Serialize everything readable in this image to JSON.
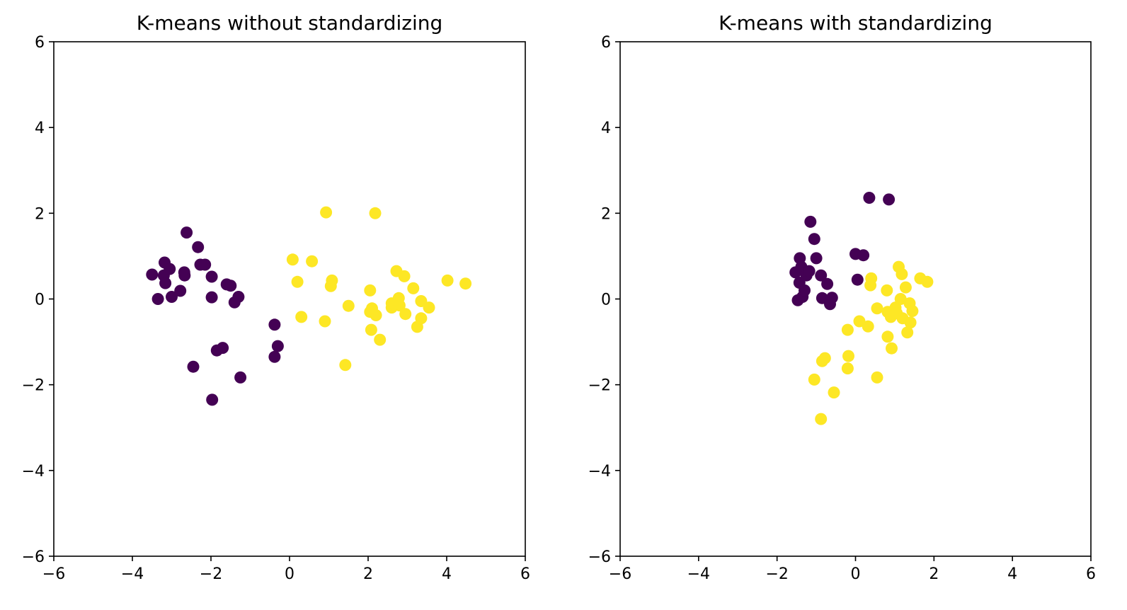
{
  "chart_data": [
    {
      "type": "scatter",
      "title": "K-means without standardizing",
      "xlabel": "",
      "ylabel": "",
      "xlim": [
        -6,
        6
      ],
      "ylim": [
        -6,
        6
      ],
      "xticks": [
        -6,
        -4,
        -2,
        0,
        2,
        4,
        6
      ],
      "yticks": [
        -6,
        -4,
        -2,
        0,
        2,
        4,
        6
      ],
      "grid": false,
      "series": [
        {
          "color": "#440154",
          "points": [
            [
              -3.5,
              0.57
            ],
            [
              -3.35,
              0.0
            ],
            [
              -3.2,
              0.55
            ],
            [
              -3.18,
              0.85
            ],
            [
              -3.16,
              0.37
            ],
            [
              -3.05,
              0.7
            ],
            [
              -3.0,
              0.05
            ],
            [
              -2.78,
              0.19
            ],
            [
              -2.68,
              0.62
            ],
            [
              -2.67,
              0.55
            ],
            [
              -2.62,
              1.55
            ],
            [
              -2.33,
              1.21
            ],
            [
              -2.27,
              0.8
            ],
            [
              -2.15,
              0.8
            ],
            [
              -1.98,
              0.52
            ],
            [
              -1.98,
              0.04
            ],
            [
              -1.6,
              0.34
            ],
            [
              -1.5,
              0.31
            ],
            [
              -1.4,
              -0.08
            ],
            [
              -1.3,
              0.05
            ],
            [
              -2.45,
              -1.58
            ],
            [
              -1.85,
              -1.2
            ],
            [
              -1.7,
              -1.14
            ],
            [
              -1.25,
              -1.83
            ],
            [
              -1.97,
              -2.35
            ],
            [
              -0.38,
              -0.6
            ],
            [
              -0.3,
              -1.1
            ],
            [
              -0.38,
              -1.35
            ]
          ]
        },
        {
          "color": "#fde725",
          "points": [
            [
              0.08,
              0.92
            ],
            [
              0.2,
              0.4
            ],
            [
              0.3,
              -0.42
            ],
            [
              0.57,
              0.88
            ],
            [
              0.9,
              -0.52
            ],
            [
              0.93,
              2.02
            ],
            [
              1.05,
              0.3
            ],
            [
              1.08,
              0.43
            ],
            [
              1.42,
              -1.54
            ],
            [
              1.5,
              -0.16
            ],
            [
              2.05,
              0.2
            ],
            [
              2.05,
              -0.3
            ],
            [
              2.08,
              -0.72
            ],
            [
              2.1,
              -0.22
            ],
            [
              2.18,
              2.0
            ],
            [
              2.2,
              -0.38
            ],
            [
              2.3,
              -0.95
            ],
            [
              2.6,
              -0.2
            ],
            [
              2.6,
              -0.1
            ],
            [
              2.72,
              0.65
            ],
            [
              2.78,
              0.02
            ],
            [
              2.8,
              -0.15
            ],
            [
              2.92,
              0.53
            ],
            [
              2.95,
              -0.35
            ],
            [
              3.15,
              0.25
            ],
            [
              3.25,
              -0.65
            ],
            [
              3.35,
              -0.05
            ],
            [
              3.35,
              -0.45
            ],
            [
              3.55,
              -0.2
            ],
            [
              4.02,
              0.43
            ],
            [
              4.48,
              0.36
            ]
          ]
        }
      ]
    },
    {
      "type": "scatter",
      "title": "K-means with standardizing",
      "xlabel": "",
      "ylabel": "",
      "xlim": [
        -6,
        6
      ],
      "ylim": [
        -6,
        6
      ],
      "xticks": [
        -6,
        -4,
        -2,
        0,
        2,
        4,
        6
      ],
      "yticks": [
        -6,
        -4,
        -2,
        0,
        2,
        4,
        6
      ],
      "grid": false,
      "series": [
        {
          "color": "#440154",
          "points": [
            [
              -1.53,
              0.62
            ],
            [
              -1.47,
              -0.03
            ],
            [
              -1.43,
              0.38
            ],
            [
              -1.42,
              0.95
            ],
            [
              -1.38,
              0.75
            ],
            [
              -1.35,
              0.05
            ],
            [
              -1.3,
              0.2
            ],
            [
              -1.25,
              0.55
            ],
            [
              -1.18,
              0.65
            ],
            [
              -1.15,
              1.8
            ],
            [
              -1.05,
              1.4
            ],
            [
              -1.0,
              0.95
            ],
            [
              -0.88,
              0.55
            ],
            [
              -0.85,
              0.02
            ],
            [
              -0.72,
              0.35
            ],
            [
              -0.65,
              -0.12
            ],
            [
              -0.6,
              0.03
            ],
            [
              0.0,
              1.05
            ],
            [
              0.05,
              0.45
            ],
            [
              0.2,
              1.02
            ],
            [
              0.35,
              2.36
            ],
            [
              0.85,
              2.32
            ]
          ]
        },
        {
          "color": "#fde725",
          "points": [
            [
              -1.05,
              -1.88
            ],
            [
              -0.88,
              -2.8
            ],
            [
              -0.85,
              -1.45
            ],
            [
              -0.78,
              -1.38
            ],
            [
              -0.55,
              -2.18
            ],
            [
              -0.2,
              -0.72
            ],
            [
              -0.2,
              -1.62
            ],
            [
              -0.18,
              -1.33
            ],
            [
              0.1,
              -0.52
            ],
            [
              0.32,
              -0.64
            ],
            [
              0.38,
              0.32
            ],
            [
              0.4,
              0.48
            ],
            [
              0.55,
              -0.22
            ],
            [
              0.55,
              -1.83
            ],
            [
              0.8,
              0.2
            ],
            [
              0.82,
              -0.3
            ],
            [
              0.82,
              -0.88
            ],
            [
              0.9,
              -0.42
            ],
            [
              0.92,
              -1.15
            ],
            [
              1.02,
              -0.2
            ],
            [
              1.05,
              -0.33
            ],
            [
              1.1,
              0.75
            ],
            [
              1.15,
              0.0
            ],
            [
              1.18,
              0.58
            ],
            [
              1.2,
              -0.45
            ],
            [
              1.28,
              0.27
            ],
            [
              1.32,
              -0.78
            ],
            [
              1.38,
              -0.1
            ],
            [
              1.4,
              -0.55
            ],
            [
              1.45,
              -0.28
            ],
            [
              1.65,
              0.48
            ],
            [
              1.83,
              0.4
            ]
          ]
        }
      ]
    }
  ]
}
